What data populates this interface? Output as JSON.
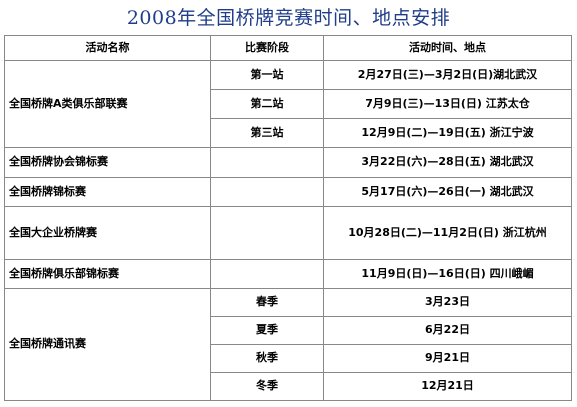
{
  "title": "2008年全国桥牌竞赛时间、地点安排",
  "headers": {
    "name": "活动名称",
    "stage": "比赛阶段",
    "time": "活动时间、地点"
  },
  "rows": [
    {
      "name": "全国桥牌A类俱乐部联赛",
      "stage": "第一站",
      "time": "2月27日(三)—3月2日(日)湖北武汉"
    },
    {
      "stage": "第二站",
      "time": "7月9日(三)—13日(日)    江苏太仓"
    },
    {
      "stage": "第三站",
      "time": "12月9日(二)—19日(五)  浙江宁波"
    },
    {
      "name": "全国桥牌协会锦标赛",
      "stage": "",
      "time": "3月22日(六)—28日(五)    湖北武汉"
    },
    {
      "name": "全国桥牌锦标赛",
      "stage": "",
      "time": "5月17日(六)—26日(一)    湖北武汉"
    },
    {
      "name": "全国大企业桥牌赛",
      "stage": "",
      "time": "10月28日(二)—11月2日(日)    浙江杭州"
    },
    {
      "name": "全国桥牌俱乐部锦标赛",
      "stage": "",
      "time": "11月9日(日)—16日(日)    四川峨嵋"
    },
    {
      "name": "全国桥牌通讯赛",
      "stage": "春季",
      "time": "3月23日"
    },
    {
      "stage": "夏季",
      "time": "6月22日"
    },
    {
      "stage": "秋季",
      "time": "9月21日"
    },
    {
      "stage": "冬季",
      "time": "12月21日"
    }
  ]
}
